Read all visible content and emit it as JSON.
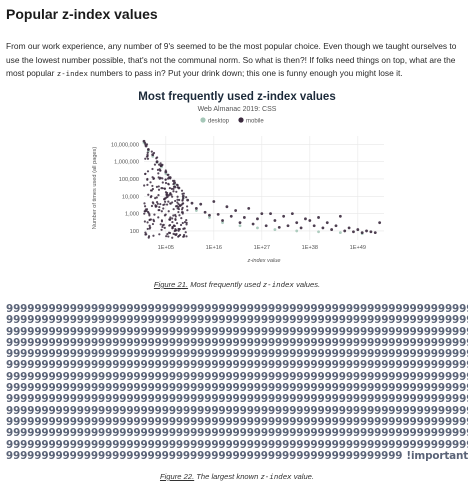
{
  "section": {
    "title": "Popular z-index values",
    "intro_part1": "From our work experience, any number of 9's seemed to be the most popular choice. Even though we taught ourselves to use the lowest number possible, that's not the communal norm. So what is then?! If folks need things on top, what are the most popular ",
    "intro_code": "z-index",
    "intro_part2": " numbers to pass in? Put your drink down; this one is funny enough you might lose it."
  },
  "figure21": {
    "label": "Figure 21.",
    "caption_pre": " Most frequently used ",
    "caption_code": "z-index",
    "caption_post": " values."
  },
  "figure22": {
    "label": "Figure 22.",
    "caption_pre": " The largest known ",
    "caption_code": "z-index",
    "caption_post": " value."
  },
  "nines": {
    "line": "999999999999999999999999999999999999999999999999999999999999999999",
    "line_count": 13,
    "last_line": "99999999999999999999999999999999999999999999999999999999",
    "important": "!important",
    "color": "#5b6478"
  },
  "chart_data": {
    "type": "scatter",
    "title": "Most frequently used z-index values",
    "subtitle": "Web Almanac 2019: CSS",
    "xlabel": "z-index value",
    "ylabel": "Number of times used (all pages)",
    "x_scale": "log",
    "y_scale": "log",
    "xlim": [
      1,
      1e+55
    ],
    "ylim": [
      30,
      30000000
    ],
    "x_ticks": [
      {
        "value": 100000.0,
        "label": "1E+05"
      },
      {
        "value": 1e+16,
        "label": "1E+16"
      },
      {
        "value": 1e+27,
        "label": "1E+27"
      },
      {
        "value": 1e+38,
        "label": "1E+38"
      },
      {
        "value": 1e+49,
        "label": "1E+49"
      }
    ],
    "y_ticks": [
      {
        "value": 100,
        "label": "100"
      },
      {
        "value": 1000,
        "label": "1,000"
      },
      {
        "value": 10000,
        "label": "10,000"
      },
      {
        "value": 100000,
        "label": "100,000"
      },
      {
        "value": 1000000,
        "label": "1,000,000"
      },
      {
        "value": 10000000,
        "label": "10,000,000"
      }
    ],
    "grid": true,
    "legend_position": "top-center",
    "series": [
      {
        "name": "desktop",
        "color": "#a5c7b8",
        "points": [
          {
            "x": 1,
            "y": 12000000
          },
          {
            "x": 10,
            "y": 4000000
          },
          {
            "x": 100,
            "y": 2000000
          },
          {
            "x": 1000,
            "y": 900000
          },
          {
            "x": 10000,
            "y": 500000
          },
          {
            "x": 100000,
            "y": 200000
          },
          {
            "x": 10000000.0,
            "y": 50000
          },
          {
            "x": 1000000000.0,
            "y": 8000
          },
          {
            "x": 1000000000000.0,
            "y": 1500
          },
          {
            "x": 1000000000000000.0,
            "y": 600
          },
          {
            "x": 1e+18,
            "y": 300
          },
          {
            "x": 1e+22,
            "y": 200
          },
          {
            "x": 1e+26,
            "y": 150
          },
          {
            "x": 1e+30,
            "y": 120
          },
          {
            "x": 1e+35,
            "y": 100
          },
          {
            "x": 1e+40,
            "y": 90
          },
          {
            "x": 1e+45,
            "y": 80
          },
          {
            "x": 1e+50,
            "y": 70
          }
        ]
      },
      {
        "name": "mobile",
        "color": "#3b2a3e",
        "points": [
          {
            "x": 1,
            "y": 15000000
          },
          {
            "x": 3,
            "y": 8000000
          },
          {
            "x": 10,
            "y": 5000000
          },
          {
            "x": 100,
            "y": 2500000
          },
          {
            "x": 1000,
            "y": 1000000
          },
          {
            "x": 10000,
            "y": 600000
          },
          {
            "x": 100000,
            "y": 250000
          },
          {
            "x": 1000000.0,
            "y": 120000
          },
          {
            "x": 10000000.0,
            "y": 60000
          },
          {
            "x": 100000000.0,
            "y": 30000
          },
          {
            "x": 1000000000.0,
            "y": 10000
          },
          {
            "x": 10000000000.0,
            "y": 6000
          },
          {
            "x": 100000000000.0,
            "y": 4000
          },
          {
            "x": 1000000000000.0,
            "y": 2000
          },
          {
            "x": 10000000000000.0,
            "y": 3500
          },
          {
            "x": 100000000000000.0,
            "y": 1200
          },
          {
            "x": 1000000000000000.0,
            "y": 800
          },
          {
            "x": 1e+16,
            "y": 5000
          },
          {
            "x": 1e+17,
            "y": 900
          },
          {
            "x": 1e+18,
            "y": 400
          },
          {
            "x": 1e+19,
            "y": 2500
          },
          {
            "x": 1e+20,
            "y": 700
          },
          {
            "x": 1e+21,
            "y": 1500
          },
          {
            "x": 1e+22,
            "y": 300
          },
          {
            "x": 1e+23,
            "y": 600
          },
          {
            "x": 1e+24,
            "y": 2000
          },
          {
            "x": 1e+25,
            "y": 250
          },
          {
            "x": 1e+26,
            "y": 500
          },
          {
            "x": 1e+27,
            "y": 1000
          },
          {
            "x": 1e+28,
            "y": 200
          },
          {
            "x": 1e+29,
            "y": 1000
          },
          {
            "x": 1e+30,
            "y": 400
          },
          {
            "x": 1e+31,
            "y": 160
          },
          {
            "x": 1e+32,
            "y": 700
          },
          {
            "x": 1e+33,
            "y": 200
          },
          {
            "x": 1e+34,
            "y": 1000
          },
          {
            "x": 1e+35,
            "y": 300
          },
          {
            "x": 1e+36,
            "y": 150
          },
          {
            "x": 1e+37,
            "y": 500
          },
          {
            "x": 1e+38,
            "y": 400
          },
          {
            "x": 1e+39,
            "y": 200
          },
          {
            "x": 1e+40,
            "y": 600
          },
          {
            "x": 1e+41,
            "y": 150
          },
          {
            "x": 1e+42,
            "y": 300
          },
          {
            "x": 1e+43,
            "y": 120
          },
          {
            "x": 1e+44,
            "y": 200
          },
          {
            "x": 1e+45,
            "y": 700
          },
          {
            "x": 1e+46,
            "y": 100
          },
          {
            "x": 1e+47,
            "y": 150
          },
          {
            "x": 1e+48,
            "y": 90
          },
          {
            "x": 1e+49,
            "y": 120
          },
          {
            "x": 1e+50,
            "y": 80
          },
          {
            "x": 1e+51,
            "y": 100
          },
          {
            "x": 1e+52,
            "y": 90
          },
          {
            "x": 1e+53,
            "y": 80
          },
          {
            "x": 1e+54,
            "y": 300
          }
        ]
      }
    ]
  }
}
